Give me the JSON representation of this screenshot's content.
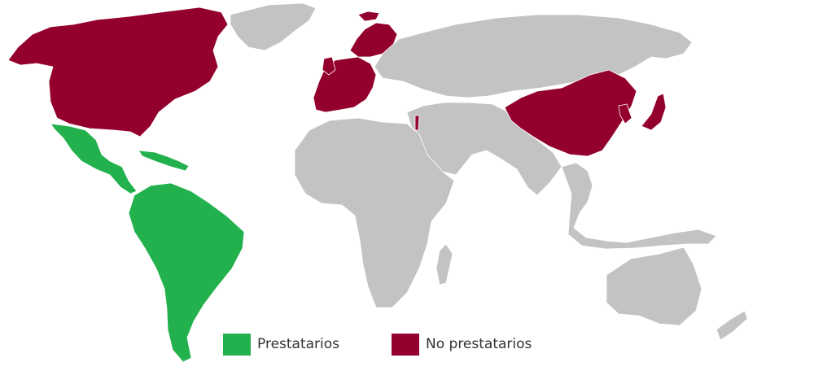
{
  "colors": {
    "borrower": "#22b14c",
    "non_borrower": "#94002d",
    "other": "#c3c3c3",
    "border": "#ffffff",
    "background": "#ffffff"
  },
  "legend": {
    "borrowers": {
      "label": "Prestatarios",
      "color": "#22b14c"
    },
    "non_borrowers": {
      "label": "No prestatarios",
      "color": "#94002d"
    }
  },
  "regions": [
    {
      "name": "north-america",
      "category": "non_borrower"
    },
    {
      "name": "greenland",
      "category": "other"
    },
    {
      "name": "mexico-central-america-caribbean",
      "category": "borrower"
    },
    {
      "name": "south-america",
      "category": "borrower"
    },
    {
      "name": "western-europe",
      "category": "non_borrower"
    },
    {
      "name": "scandinavia",
      "category": "non_borrower"
    },
    {
      "name": "israel",
      "category": "non_borrower"
    },
    {
      "name": "china",
      "category": "non_borrower"
    },
    {
      "name": "japan",
      "category": "non_borrower"
    },
    {
      "name": "korea",
      "category": "non_borrower"
    },
    {
      "name": "russia-central-asia",
      "category": "other"
    },
    {
      "name": "middle-east-south-asia",
      "category": "other"
    },
    {
      "name": "africa",
      "category": "other"
    },
    {
      "name": "southeast-asia",
      "category": "other"
    },
    {
      "name": "australia-oceania",
      "category": "other"
    }
  ]
}
